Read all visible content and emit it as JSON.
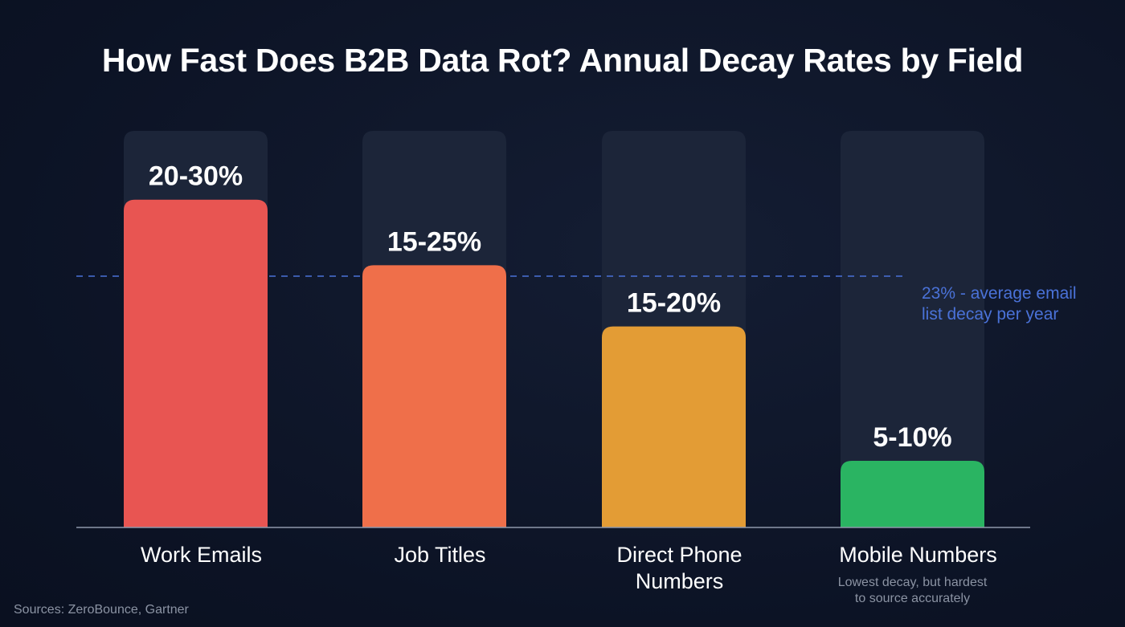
{
  "chart_data": {
    "type": "bar",
    "title": "How Fast Does B2B Data Rot? Annual Decay Rates by Field",
    "categories": [
      "Work Emails",
      "Job Titles",
      "Direct Phone Numbers",
      "Mobile Numbers"
    ],
    "category_lines": [
      [
        "Work Emails"
      ],
      [
        "Job Titles"
      ],
      [
        "Direct Phone",
        "Numbers"
      ],
      [
        "Mobile Numbers"
      ]
    ],
    "values": [
      30,
      24,
      18.4,
      6.1
    ],
    "data_labels": [
      "20-30%",
      "15-25%",
      "15-20%",
      "5-10%"
    ],
    "colors": [
      "#e85552",
      "#ef6f4a",
      "#e39c35",
      "#2ab462"
    ],
    "notes": [
      "",
      "",
      "",
      "Lowest decay, but hardest to source accurately"
    ],
    "note_lines": [
      [],
      [],
      [],
      [
        "Lowest decay, but hardest",
        "to source accurately"
      ]
    ],
    "ylim": [
      0,
      36.3
    ],
    "xlabel": "",
    "ylabel": "",
    "grid": false,
    "reference_line": {
      "value": 23,
      "label_lines": [
        "23% - average email",
        "list decay per year"
      ],
      "color": "#4a72d8",
      "style": "dashed"
    },
    "track_color": "#1c2539",
    "axis_color": "#8e98ab"
  },
  "footer": {
    "source": "Sources: ZeroBounce, Gartner"
  }
}
